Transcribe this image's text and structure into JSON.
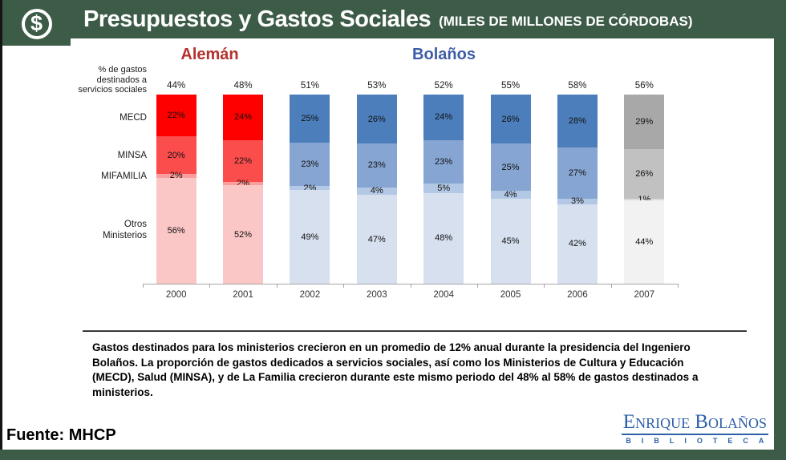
{
  "header": {
    "title": "Presupuestos y Gastos Sociales",
    "subtitle": "(MILES DE MILLONES DE CÓRDOBAS)",
    "icon": "dollar-coin-icon",
    "bg_color": "#3D5C48"
  },
  "chart_data": {
    "type": "bar",
    "stacked": true,
    "unit": "%",
    "categories": [
      "2000",
      "2001",
      "2002",
      "2003",
      "2004",
      "2005",
      "2006",
      "2007"
    ],
    "totals": [
      44,
      48,
      51,
      53,
      52,
      55,
      58,
      56
    ],
    "series": [
      {
        "name": "MECD",
        "values": [
          22,
          24,
          25,
          26,
          24,
          26,
          28,
          29
        ]
      },
      {
        "name": "MINSA",
        "values": [
          20,
          22,
          23,
          23,
          23,
          25,
          27,
          26
        ]
      },
      {
        "name": "MIFAMILIA",
        "values": [
          2,
          2,
          2,
          4,
          5,
          4,
          3,
          1
        ]
      },
      {
        "name": "Otros Ministerios",
        "values": [
          56,
          52,
          49,
          47,
          48,
          45,
          42,
          44
        ]
      }
    ],
    "era_groups": [
      {
        "label": "Alemán",
        "color": "#B5312D",
        "start": 0,
        "end": 1
      },
      {
        "label": "Bolaños",
        "color": "#3D5DA7",
        "start": 2,
        "end": 6
      }
    ],
    "axis_label": "% de gastos\ndestinados a\nservicios sociales",
    "row_labels": [
      "MECD",
      "MINSA",
      "MIFAMILIA",
      "Otros\nMinisterios"
    ],
    "palette": {
      "aleman": [
        "#FE0000",
        "#FC4D4D",
        "#FA9D9D",
        "#FAC6C6"
      ],
      "bolanos": [
        "#4C7EBB",
        "#86A5D2",
        "#B3C8E4",
        "#D7E0EF"
      ],
      "projection": [
        "#A8A8A8",
        "#C1C1C1",
        "#DCDCDC",
        "#F2F2F2"
      ]
    },
    "legend_position": "left",
    "grid": false
  },
  "body_text": "Gastos destinados para los ministerios crecieron en un promedio de 12% anual durante la presidencia del Ingeniero Bolaños.  La proporción de gastos dedicados a servicios sociales, así como los  Ministerios de Cultura y Educación (MECD),  Salud (MINSA), y de La Familia crecieron durante este mismo periodo del 48% al 58% de gastos destinados a ministerios.",
  "footer": {
    "source": "Fuente: MHCP",
    "logo_title": "Enrique Bolaños",
    "logo_subtitle": "BIBLIOTECA"
  }
}
